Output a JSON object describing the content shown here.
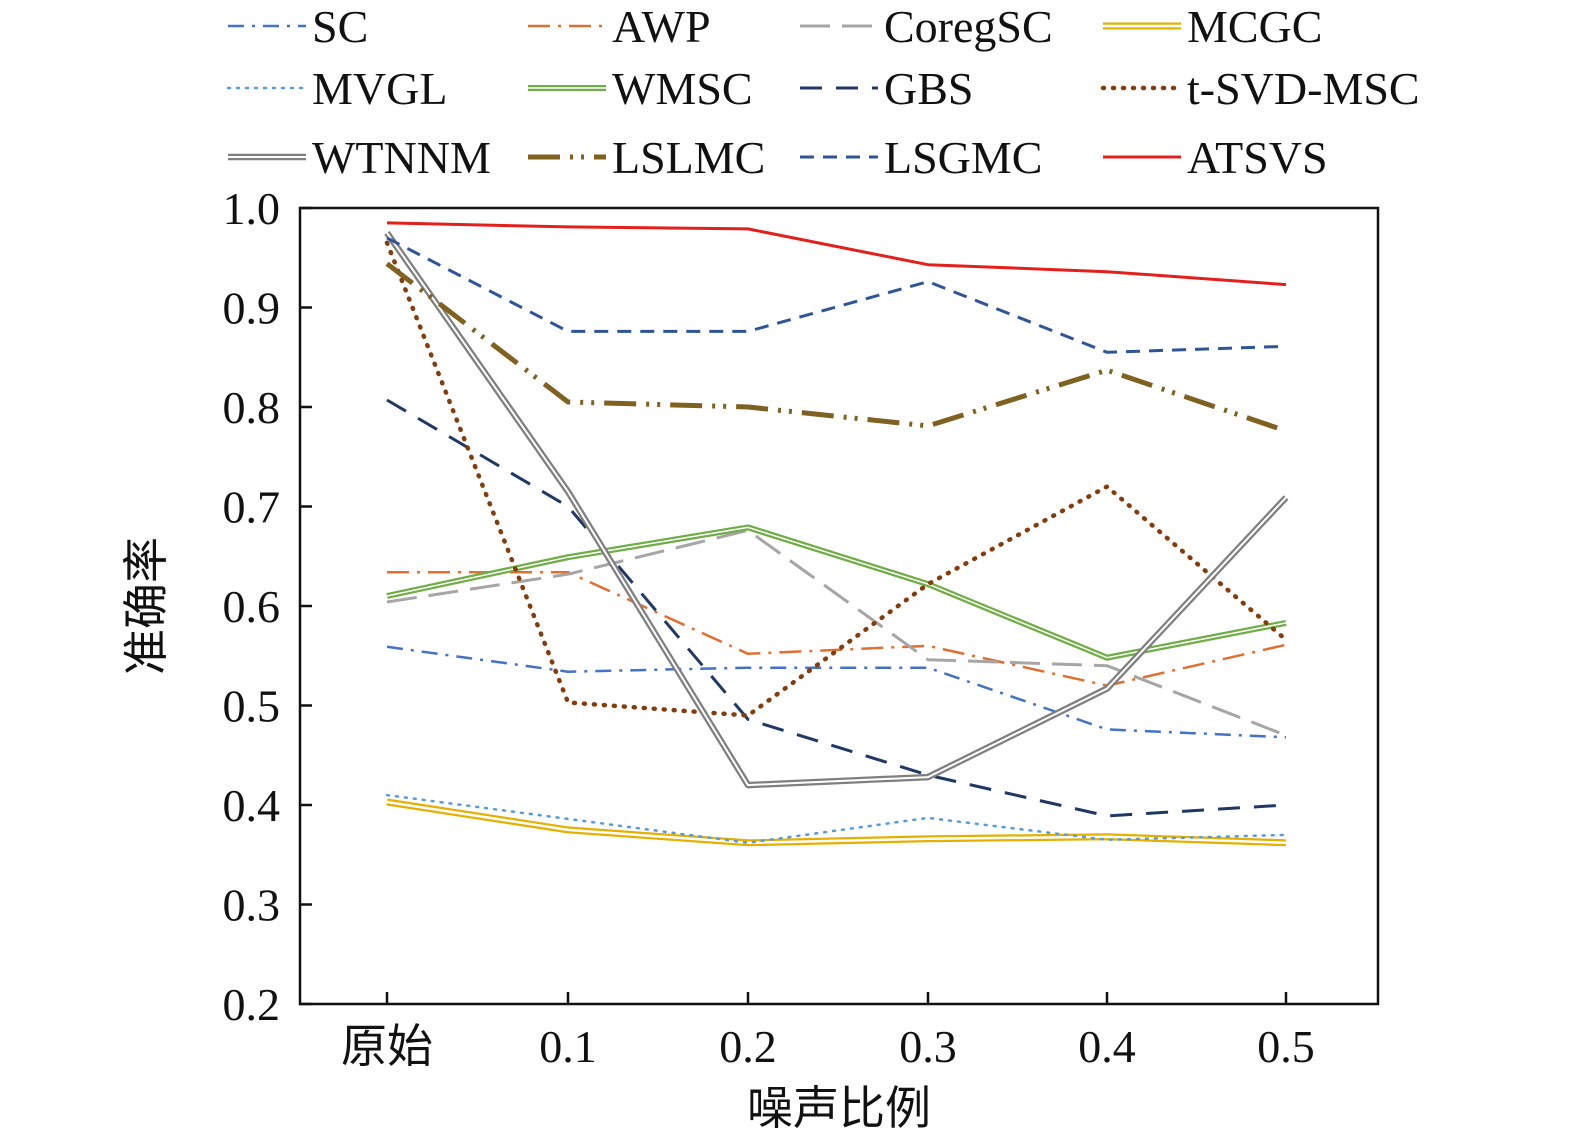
{
  "chart_data": {
    "type": "line",
    "xlabel": "噪声比例",
    "ylabel": "准确率",
    "categories": [
      "原始",
      "0.1",
      "0.2",
      "0.3",
      "0.4",
      "0.5"
    ],
    "ylim": [
      0.2,
      1.0
    ],
    "yticks": [
      "0.2",
      "0.3",
      "0.4",
      "0.5",
      "0.6",
      "0.7",
      "0.8",
      "0.9",
      "1.0"
    ],
    "grid": false,
    "legend_position": "top",
    "series": [
      {
        "name": "SC",
        "color": "#4472c4",
        "values": [
          0.559,
          0.534,
          0.538,
          0.538,
          0.476,
          0.468
        ]
      },
      {
        "name": "AWP",
        "color": "#e07032",
        "values": [
          0.634,
          0.634,
          0.552,
          0.56,
          0.52,
          0.561
        ]
      },
      {
        "name": "CoregSC",
        "color": "#a6a6a6",
        "values": [
          0.604,
          0.632,
          0.676,
          0.546,
          0.54,
          0.47
        ]
      },
      {
        "name": "MCGC",
        "color": "#e6b000",
        "values": [
          0.403,
          0.375,
          0.362,
          0.366,
          0.368,
          0.362
        ]
      },
      {
        "name": "MVGL",
        "color": "#5b9bd5",
        "values": [
          0.41,
          0.386,
          0.362,
          0.387,
          0.365,
          0.37
        ]
      },
      {
        "name": "WMSC",
        "color": "#70ad47",
        "values": [
          0.61,
          0.649,
          0.679,
          0.622,
          0.548,
          0.583
        ]
      },
      {
        "name": "GBS",
        "color": "#203864",
        "values": [
          0.807,
          0.7,
          0.486,
          0.43,
          0.389,
          0.4
        ]
      },
      {
        "name": "t-SVD-MSC",
        "color": "#843c0c",
        "values": [
          0.965,
          0.503,
          0.49,
          0.622,
          0.72,
          0.566
        ]
      },
      {
        "name": "WTNNM",
        "color": "#7f7f7f",
        "values": [
          0.975,
          0.715,
          0.42,
          0.428,
          0.517,
          0.709
        ]
      },
      {
        "name": "LSLMC",
        "color": "#7f6120",
        "values": [
          0.944,
          0.805,
          0.8,
          0.781,
          0.837,
          0.776
        ]
      },
      {
        "name": "LSGMC",
        "color": "#2f5597",
        "values": [
          0.97,
          0.876,
          0.876,
          0.926,
          0.855,
          0.861
        ]
      },
      {
        "name": "ATSVS",
        "color": "#e3201c",
        "values": [
          0.985,
          0.981,
          0.979,
          0.943,
          0.936,
          0.923
        ]
      }
    ]
  }
}
